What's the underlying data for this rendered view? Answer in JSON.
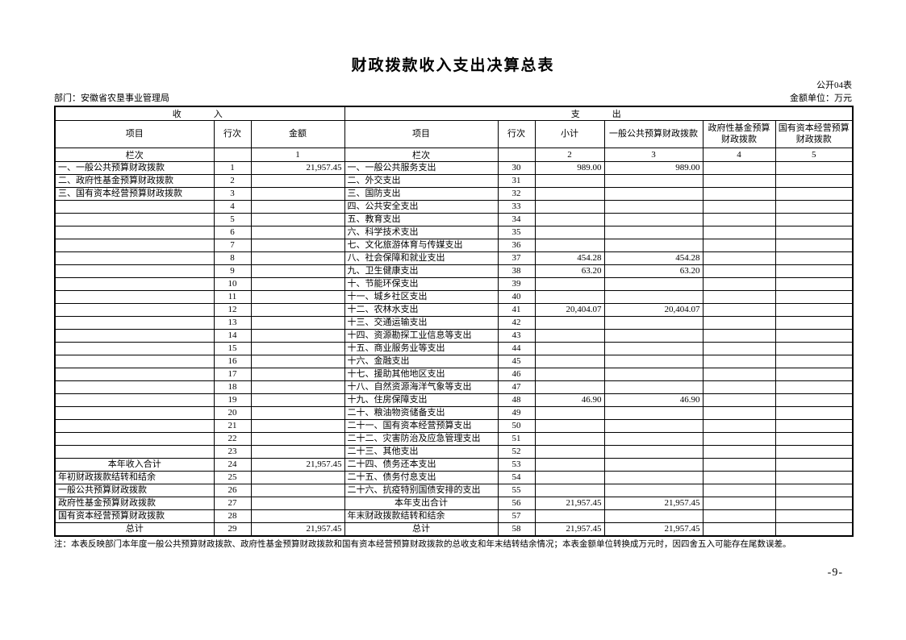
{
  "page": {
    "title": "财政拨款收入支出决算总表",
    "table_code": "公开04表",
    "department_label": "部门：安徽省农垦事业管理局",
    "unit_label": "金额单位：万元",
    "note": "注：本表反映部门本年度一般公共预算财政拨款、政府性基金预算财政拨款和国有资本经营预算财政拨款的总收支和年末结转结余情况；本表金额单位转换成万元时，因四舍五入可能存在尾数误差。",
    "page_number": "-9-"
  },
  "table": {
    "income_header": "收　　入",
    "expense_header": "支　　出",
    "income_columns": [
      "项目",
      "行次",
      "金额"
    ],
    "expense_columns": [
      "项目",
      "行次",
      "小计",
      "一般公共预算财政拨款",
      "政府性基金预算财政拨款",
      "国有资本经营预算财政拨款"
    ],
    "index_row": [
      "栏次",
      "",
      "1",
      "栏次",
      "",
      "2",
      "3",
      "4",
      "5"
    ],
    "rows": [
      {
        "in": [
          "一、一般公共预算财政拨款",
          "1",
          "21,957.45"
        ],
        "in_style": "",
        "ex": [
          "一、一般公共服务支出",
          "30",
          "989.00",
          "989.00",
          "",
          ""
        ],
        "ex_style": ""
      },
      {
        "in": [
          "二、政府性基金预算财政拨款",
          "2",
          ""
        ],
        "in_style": "",
        "ex": [
          "二、外交支出",
          "31",
          "",
          "",
          "",
          ""
        ],
        "ex_style": ""
      },
      {
        "in": [
          "三、国有资本经营预算财政拨款",
          "3",
          ""
        ],
        "in_style": "",
        "ex": [
          "三、国防支出",
          "32",
          "",
          "",
          "",
          ""
        ],
        "ex_style": ""
      },
      {
        "in": [
          "",
          "4",
          ""
        ],
        "in_style": "",
        "ex": [
          "四、公共安全支出",
          "33",
          "",
          "",
          "",
          ""
        ],
        "ex_style": ""
      },
      {
        "in": [
          "",
          "5",
          ""
        ],
        "in_style": "",
        "ex": [
          "五、教育支出",
          "34",
          "",
          "",
          "",
          ""
        ],
        "ex_style": ""
      },
      {
        "in": [
          "",
          "6",
          ""
        ],
        "in_style": "",
        "ex": [
          "六、科学技术支出",
          "35",
          "",
          "",
          "",
          ""
        ],
        "ex_style": ""
      },
      {
        "in": [
          "",
          "7",
          ""
        ],
        "in_style": "",
        "ex": [
          "七、文化旅游体育与传媒支出",
          "36",
          "",
          "",
          "",
          ""
        ],
        "ex_style": ""
      },
      {
        "in": [
          "",
          "8",
          ""
        ],
        "in_style": "",
        "ex": [
          "八、社会保障和就业支出",
          "37",
          "454.28",
          "454.28",
          "",
          ""
        ],
        "ex_style": ""
      },
      {
        "in": [
          "",
          "9",
          ""
        ],
        "in_style": "",
        "ex": [
          "九、卫生健康支出",
          "38",
          "63.20",
          "63.20",
          "",
          ""
        ],
        "ex_style": ""
      },
      {
        "in": [
          "",
          "10",
          ""
        ],
        "in_style": "",
        "ex": [
          "十、节能环保支出",
          "39",
          "",
          "",
          "",
          ""
        ],
        "ex_style": ""
      },
      {
        "in": [
          "",
          "11",
          ""
        ],
        "in_style": "",
        "ex": [
          "十一、城乡社区支出",
          "40",
          "",
          "",
          "",
          ""
        ],
        "ex_style": ""
      },
      {
        "in": [
          "",
          "12",
          ""
        ],
        "in_style": "",
        "ex": [
          "十二、农林水支出",
          "41",
          "20,404.07",
          "20,404.07",
          "",
          ""
        ],
        "ex_style": ""
      },
      {
        "in": [
          "",
          "13",
          ""
        ],
        "in_style": "",
        "ex": [
          "十三、交通运输支出",
          "42",
          "",
          "",
          "",
          ""
        ],
        "ex_style": ""
      },
      {
        "in": [
          "",
          "14",
          ""
        ],
        "in_style": "",
        "ex": [
          "十四、资源勘探工业信息等支出",
          "43",
          "",
          "",
          "",
          ""
        ],
        "ex_style": ""
      },
      {
        "in": [
          "",
          "15",
          ""
        ],
        "in_style": "",
        "ex": [
          "十五、商业服务业等支出",
          "44",
          "",
          "",
          "",
          ""
        ],
        "ex_style": ""
      },
      {
        "in": [
          "",
          "16",
          ""
        ],
        "in_style": "",
        "ex": [
          "十六、金融支出",
          "45",
          "",
          "",
          "",
          ""
        ],
        "ex_style": ""
      },
      {
        "in": [
          "",
          "17",
          ""
        ],
        "in_style": "",
        "ex": [
          "十七、援助其他地区支出",
          "46",
          "",
          "",
          "",
          ""
        ],
        "ex_style": ""
      },
      {
        "in": [
          "",
          "18",
          ""
        ],
        "in_style": "",
        "ex": [
          "十八、自然资源海洋气象等支出",
          "47",
          "",
          "",
          "",
          ""
        ],
        "ex_style": ""
      },
      {
        "in": [
          "",
          "19",
          ""
        ],
        "in_style": "",
        "ex": [
          "十九、住房保障支出",
          "48",
          "46.90",
          "46.90",
          "",
          ""
        ],
        "ex_style": ""
      },
      {
        "in": [
          "",
          "20",
          ""
        ],
        "in_style": "",
        "ex": [
          "二十、粮油物资储备支出",
          "49",
          "",
          "",
          "",
          ""
        ],
        "ex_style": ""
      },
      {
        "in": [
          "",
          "21",
          ""
        ],
        "in_style": "",
        "ex": [
          "二十一、国有资本经营预算支出",
          "50",
          "",
          "",
          "",
          ""
        ],
        "ex_style": ""
      },
      {
        "in": [
          "",
          "22",
          ""
        ],
        "in_style": "",
        "ex": [
          "二十二、灾害防治及应急管理支出",
          "51",
          "",
          "",
          "",
          ""
        ],
        "ex_style": ""
      },
      {
        "in": [
          "",
          "23",
          ""
        ],
        "in_style": "",
        "ex": [
          "二十三、其他支出",
          "52",
          "",
          "",
          "",
          ""
        ],
        "ex_style": ""
      },
      {
        "in": [
          "本年收入合计",
          "24",
          "21,957.45"
        ],
        "in_style": "total",
        "ex": [
          "二十四、债务还本支出",
          "53",
          "",
          "",
          "",
          ""
        ],
        "ex_style": ""
      },
      {
        "in": [
          "年初财政拨款结转和结余",
          "25",
          ""
        ],
        "in_style": "",
        "ex": [
          "二十五、债务付息支出",
          "54",
          "",
          "",
          "",
          ""
        ],
        "ex_style": ""
      },
      {
        "in": [
          "一般公共预算财政拨款",
          "26",
          ""
        ],
        "in_style": "indent",
        "ex": [
          "二十六、抗疫特别国债安排的支出",
          "55",
          "",
          "",
          "",
          ""
        ],
        "ex_style": ""
      },
      {
        "in": [
          "政府性基金预算财政拨款",
          "27",
          ""
        ],
        "in_style": "indent",
        "ex": [
          "本年支出合计",
          "56",
          "21,957.45",
          "21,957.45",
          "",
          ""
        ],
        "ex_style": "total"
      },
      {
        "in": [
          "国有资本经营预算财政拨款",
          "28",
          ""
        ],
        "in_style": "indent",
        "ex": [
          "年末财政拨款结转和结余",
          "57",
          "",
          "",
          "",
          ""
        ],
        "ex_style": ""
      },
      {
        "in": [
          "总计",
          "29",
          "21,957.45"
        ],
        "in_style": "total",
        "ex": [
          "总计",
          "58",
          "21,957.45",
          "21,957.45",
          "",
          ""
        ],
        "ex_style": "total"
      }
    ]
  }
}
